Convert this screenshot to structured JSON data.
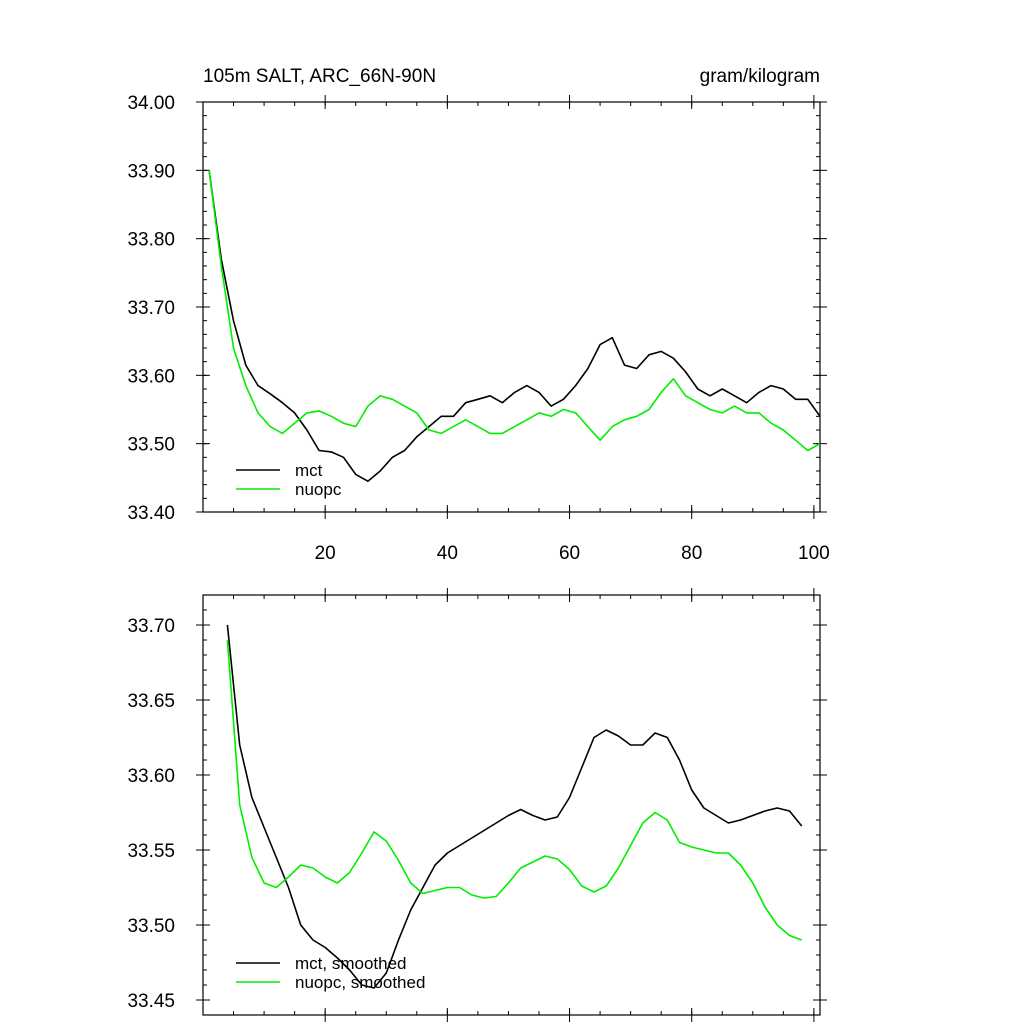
{
  "colors": {
    "mct": "#000000",
    "nuopc": "#00ee00",
    "background": "#ffffff"
  },
  "chart_data": [
    {
      "type": "line",
      "title_left": "105m SALT, ARC_66N-90N",
      "title_right": "gram/kilogram",
      "xlim": [
        0,
        101
      ],
      "ylim": [
        33.4,
        34.0
      ],
      "xticks": [
        20,
        40,
        60,
        80,
        100
      ],
      "xtick_labels": [
        "20",
        "40",
        "60",
        "80",
        "100"
      ],
      "yticks": [
        33.4,
        33.5,
        33.6,
        33.7,
        33.8,
        33.9,
        34.0
      ],
      "ytick_labels": [
        "33.40",
        "33.50",
        "33.60",
        "33.70",
        "33.80",
        "33.90",
        "34.00"
      ],
      "legend": [
        "mct",
        "nuopc"
      ],
      "legend_position": "bottom-left",
      "series": [
        {
          "name": "mct",
          "color": "#000000",
          "x": [
            1,
            3,
            5,
            7,
            9,
            11,
            13,
            15,
            17,
            19,
            21,
            23,
            25,
            27,
            29,
            31,
            33,
            35,
            37,
            39,
            41,
            43,
            45,
            47,
            49,
            51,
            53,
            55,
            57,
            59,
            61,
            63,
            65,
            67,
            69,
            71,
            73,
            75,
            77,
            79,
            81,
            83,
            85,
            87,
            89,
            91,
            93,
            95,
            97,
            99,
            101
          ],
          "y": [
            33.9,
            33.77,
            33.68,
            33.615,
            33.585,
            33.573,
            33.56,
            33.545,
            33.52,
            33.49,
            33.488,
            33.48,
            33.455,
            33.445,
            33.46,
            33.48,
            33.49,
            33.51,
            33.525,
            33.54,
            33.54,
            33.56,
            33.565,
            33.57,
            33.56,
            33.575,
            33.585,
            33.575,
            33.555,
            33.565,
            33.585,
            33.61,
            33.645,
            33.655,
            33.615,
            33.61,
            33.63,
            33.635,
            33.625,
            33.605,
            33.58,
            33.57,
            33.58,
            33.57,
            33.56,
            33.575,
            33.585,
            33.58,
            33.565,
            33.565,
            33.54
          ]
        },
        {
          "name": "nuopc",
          "color": "#00ee00",
          "x": [
            1,
            3,
            5,
            7,
            9,
            11,
            13,
            15,
            17,
            19,
            21,
            23,
            25,
            27,
            29,
            31,
            33,
            35,
            37,
            39,
            41,
            43,
            45,
            47,
            49,
            51,
            53,
            55,
            57,
            59,
            61,
            63,
            65,
            67,
            69,
            71,
            73,
            75,
            77,
            79,
            81,
            83,
            85,
            87,
            89,
            91,
            93,
            95,
            97,
            99,
            101
          ],
          "y": [
            33.9,
            33.76,
            33.64,
            33.585,
            33.545,
            33.525,
            33.515,
            33.53,
            33.545,
            33.548,
            33.54,
            33.53,
            33.525,
            33.555,
            33.57,
            33.565,
            33.555,
            33.545,
            33.52,
            33.515,
            33.525,
            33.535,
            33.525,
            33.515,
            33.515,
            33.525,
            33.535,
            33.545,
            33.54,
            33.55,
            33.545,
            33.525,
            33.505,
            33.525,
            33.535,
            33.54,
            33.55,
            33.575,
            33.595,
            33.57,
            33.56,
            33.55,
            33.545,
            33.555,
            33.545,
            33.545,
            33.53,
            33.52,
            33.505,
            33.49,
            33.5
          ]
        }
      ]
    },
    {
      "type": "line",
      "xlim": [
        0,
        101
      ],
      "ylim": [
        33.44,
        33.72
      ],
      "xticks": [
        20,
        40,
        60,
        80,
        100
      ],
      "yticks": [
        33.45,
        33.5,
        33.55,
        33.6,
        33.65,
        33.7
      ],
      "ytick_labels": [
        "33.45",
        "33.50",
        "33.55",
        "33.60",
        "33.65",
        "33.70"
      ],
      "legend": [
        "mct, smoothed",
        "nuopc, smoothed"
      ],
      "legend_position": "bottom-left",
      "series": [
        {
          "name": "mct, smoothed",
          "color": "#000000",
          "x": [
            4,
            6,
            8,
            10,
            12,
            14,
            16,
            18,
            20,
            22,
            24,
            26,
            28,
            30,
            32,
            34,
            36,
            38,
            40,
            42,
            44,
            46,
            48,
            50,
            52,
            54,
            56,
            58,
            60,
            62,
            64,
            66,
            68,
            70,
            72,
            74,
            76,
            78,
            80,
            82,
            84,
            86,
            88,
            90,
            92,
            94,
            96,
            98
          ],
          "y": [
            33.7,
            33.62,
            33.585,
            33.565,
            33.545,
            33.525,
            33.5,
            33.49,
            33.485,
            33.478,
            33.47,
            33.46,
            33.458,
            33.468,
            33.49,
            33.51,
            33.525,
            33.54,
            33.548,
            33.553,
            33.558,
            33.563,
            33.568,
            33.573,
            33.577,
            33.573,
            33.57,
            33.572,
            33.585,
            33.605,
            33.625,
            33.63,
            33.626,
            33.62,
            33.62,
            33.628,
            33.625,
            33.61,
            33.59,
            33.578,
            33.573,
            33.568,
            33.57,
            33.573,
            33.576,
            33.578,
            33.576,
            33.566
          ]
        },
        {
          "name": "nuopc, smoothed",
          "color": "#00ee00",
          "x": [
            4,
            6,
            8,
            10,
            12,
            14,
            16,
            18,
            20,
            22,
            24,
            26,
            28,
            30,
            32,
            34,
            36,
            38,
            40,
            42,
            44,
            46,
            48,
            50,
            52,
            54,
            56,
            58,
            60,
            62,
            64,
            66,
            68,
            70,
            72,
            74,
            76,
            78,
            80,
            82,
            84,
            86,
            88,
            90,
            92,
            94,
            96,
            98
          ],
          "y": [
            33.69,
            33.58,
            33.545,
            33.528,
            33.525,
            33.532,
            33.54,
            33.538,
            33.532,
            33.528,
            33.535,
            33.548,
            33.562,
            33.556,
            33.543,
            33.528,
            33.521,
            33.523,
            33.525,
            33.525,
            33.52,
            33.518,
            33.519,
            33.528,
            33.538,
            33.542,
            33.546,
            33.544,
            33.537,
            33.526,
            33.522,
            33.526,
            33.538,
            33.553,
            33.568,
            33.575,
            33.57,
            33.555,
            33.552,
            33.55,
            33.548,
            33.548,
            33.54,
            33.528,
            33.512,
            33.5,
            33.493,
            33.49
          ]
        }
      ]
    }
  ]
}
